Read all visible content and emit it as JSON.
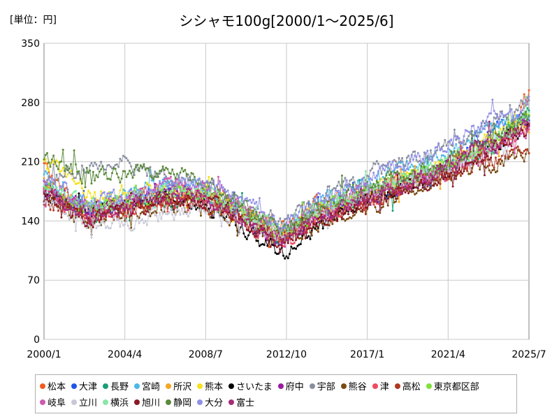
{
  "unit_label": "[単位：円]",
  "chart_data": {
    "type": "line",
    "title": "シシャモ100g[2000/1～2025/6]",
    "xlabel": "",
    "ylabel": "",
    "ylim": [
      0,
      350
    ],
    "yticks": [
      0,
      70,
      140,
      210,
      280,
      350
    ],
    "xticks": [
      "2000/1",
      "2004/4",
      "2008/7",
      "2012/10",
      "2017/1",
      "2021/4",
      "2025/7"
    ],
    "grid": true,
    "legend_position": "bottom",
    "series": [
      {
        "name": "松本",
        "color": "#f05a22",
        "anchors": [
          [
            0,
            205
          ],
          [
            12,
            175
          ],
          [
            30,
            150
          ],
          [
            51,
            160
          ],
          [
            80,
            170
          ],
          [
            102,
            165
          ],
          [
            125,
            155
          ],
          [
            150,
            135
          ],
          [
            170,
            160
          ],
          [
            210,
            175
          ],
          [
            250,
            200
          ],
          [
            270,
            215
          ],
          [
            295,
            245
          ],
          [
            306,
            292
          ]
        ]
      },
      {
        "name": "大津",
        "color": "#1f56e6",
        "anchors": [
          [
            0,
            175
          ],
          [
            12,
            160
          ],
          [
            30,
            150
          ],
          [
            51,
            160
          ],
          [
            80,
            175
          ],
          [
            102,
            175
          ],
          [
            125,
            150
          ],
          [
            150,
            120
          ],
          [
            170,
            150
          ],
          [
            210,
            170
          ],
          [
            250,
            195
          ],
          [
            270,
            230
          ],
          [
            295,
            260
          ],
          [
            306,
            265
          ]
        ]
      },
      {
        "name": "長野",
        "color": "#1a9d78",
        "anchors": [
          [
            0,
            175
          ],
          [
            12,
            160
          ],
          [
            30,
            150
          ],
          [
            51,
            155
          ],
          [
            80,
            165
          ],
          [
            102,
            172
          ],
          [
            125,
            155
          ],
          [
            150,
            115
          ],
          [
            170,
            145
          ],
          [
            210,
            175
          ],
          [
            250,
            200
          ],
          [
            270,
            215
          ],
          [
            295,
            245
          ],
          [
            306,
            270
          ]
        ]
      },
      {
        "name": "宮崎",
        "color": "#4cb8e8",
        "anchors": [
          [
            0,
            190
          ],
          [
            12,
            170
          ],
          [
            30,
            155
          ],
          [
            51,
            170
          ],
          [
            80,
            185
          ],
          [
            102,
            175
          ],
          [
            125,
            150
          ],
          [
            150,
            125
          ],
          [
            170,
            160
          ],
          [
            210,
            190
          ],
          [
            250,
            215
          ],
          [
            270,
            235
          ],
          [
            295,
            260
          ],
          [
            306,
            270
          ]
        ]
      },
      {
        "name": "所沢",
        "color": "#f5a623",
        "anchors": [
          [
            0,
            185
          ],
          [
            12,
            165
          ],
          [
            30,
            150
          ],
          [
            51,
            160
          ],
          [
            80,
            170
          ],
          [
            102,
            170
          ],
          [
            125,
            155
          ],
          [
            150,
            125
          ],
          [
            170,
            145
          ],
          [
            210,
            175
          ],
          [
            250,
            200
          ],
          [
            270,
            220
          ],
          [
            295,
            245
          ],
          [
            306,
            255
          ]
        ]
      },
      {
        "name": "熊本",
        "color": "#f5e11c",
        "anchors": [
          [
            0,
            205
          ],
          [
            12,
            200
          ],
          [
            30,
            170
          ],
          [
            51,
            175
          ],
          [
            80,
            180
          ],
          [
            102,
            175
          ],
          [
            125,
            150
          ],
          [
            150,
            125
          ],
          [
            170,
            150
          ],
          [
            210,
            180
          ],
          [
            250,
            205
          ],
          [
            270,
            225
          ],
          [
            295,
            250
          ],
          [
            306,
            265
          ]
        ]
      },
      {
        "name": "さいたま",
        "color": "#000000",
        "anchors": [
          [
            0,
            170
          ],
          [
            12,
            160
          ],
          [
            30,
            150
          ],
          [
            51,
            160
          ],
          [
            80,
            170
          ],
          [
            102,
            160
          ],
          [
            125,
            130
          ],
          [
            150,
            100
          ],
          [
            170,
            130
          ],
          [
            210,
            170
          ],
          [
            250,
            195
          ],
          [
            270,
            215
          ],
          [
            295,
            240
          ],
          [
            306,
            260
          ]
        ]
      },
      {
        "name": "府中",
        "color": "#9a1aa0",
        "anchors": [
          [
            0,
            180
          ],
          [
            12,
            165
          ],
          [
            30,
            150
          ],
          [
            51,
            160
          ],
          [
            80,
            175
          ],
          [
            102,
            165
          ],
          [
            125,
            145
          ],
          [
            150,
            115
          ],
          [
            170,
            140
          ],
          [
            210,
            175
          ],
          [
            250,
            200
          ],
          [
            270,
            225
          ],
          [
            295,
            245
          ],
          [
            306,
            255
          ]
        ]
      },
      {
        "name": "宇部",
        "color": "#8a8fa0",
        "anchors": [
          [
            0,
            185
          ],
          [
            12,
            195
          ],
          [
            30,
            205
          ],
          [
            51,
            210
          ],
          [
            80,
            190
          ],
          [
            102,
            180
          ],
          [
            125,
            160
          ],
          [
            150,
            140
          ],
          [
            170,
            165
          ],
          [
            210,
            200
          ],
          [
            250,
            225
          ],
          [
            270,
            240
          ],
          [
            295,
            270
          ],
          [
            306,
            280
          ]
        ]
      },
      {
        "name": "熊谷",
        "color": "#7a4a12",
        "anchors": [
          [
            0,
            170
          ],
          [
            12,
            155
          ],
          [
            30,
            140
          ],
          [
            51,
            150
          ],
          [
            80,
            160
          ],
          [
            102,
            155
          ],
          [
            125,
            140
          ],
          [
            150,
            120
          ],
          [
            170,
            135
          ],
          [
            210,
            160
          ],
          [
            250,
            190
          ],
          [
            270,
            200
          ],
          [
            295,
            215
          ],
          [
            306,
            220
          ]
        ]
      },
      {
        "name": "津",
        "color": "#f04a5e",
        "anchors": [
          [
            0,
            185
          ],
          [
            12,
            160
          ],
          [
            30,
            145
          ],
          [
            51,
            155
          ],
          [
            80,
            165
          ],
          [
            102,
            165
          ],
          [
            125,
            140
          ],
          [
            150,
            110
          ],
          [
            170,
            140
          ],
          [
            210,
            170
          ],
          [
            250,
            195
          ],
          [
            270,
            215
          ],
          [
            295,
            240
          ],
          [
            306,
            250
          ]
        ]
      },
      {
        "name": "高松",
        "color": "#b0381e",
        "anchors": [
          [
            0,
            165
          ],
          [
            12,
            155
          ],
          [
            30,
            145
          ],
          [
            51,
            155
          ],
          [
            80,
            165
          ],
          [
            102,
            160
          ],
          [
            125,
            145
          ],
          [
            150,
            125
          ],
          [
            170,
            145
          ],
          [
            210,
            170
          ],
          [
            250,
            195
          ],
          [
            270,
            205
          ],
          [
            295,
            220
          ],
          [
            306,
            230
          ]
        ]
      },
      {
        "name": "東京都区部",
        "color": "#7fe03a",
        "anchors": [
          [
            0,
            180
          ],
          [
            12,
            165
          ],
          [
            30,
            155
          ],
          [
            51,
            165
          ],
          [
            80,
            175
          ],
          [
            102,
            170
          ],
          [
            125,
            150
          ],
          [
            150,
            125
          ],
          [
            170,
            150
          ],
          [
            210,
            180
          ],
          [
            250,
            205
          ],
          [
            270,
            220
          ],
          [
            295,
            245
          ],
          [
            306,
            260
          ]
        ]
      },
      {
        "name": "岐阜",
        "color": "#d05ab0",
        "anchors": [
          [
            0,
            180
          ],
          [
            12,
            165
          ],
          [
            30,
            150
          ],
          [
            51,
            165
          ],
          [
            80,
            180
          ],
          [
            102,
            185
          ],
          [
            125,
            160
          ],
          [
            150,
            125
          ],
          [
            170,
            150
          ],
          [
            210,
            180
          ],
          [
            250,
            200
          ],
          [
            270,
            215
          ],
          [
            295,
            235
          ],
          [
            306,
            245
          ]
        ]
      },
      {
        "name": "立川",
        "color": "#c8c8d8",
        "anchors": [
          [
            0,
            165
          ],
          [
            12,
            150
          ],
          [
            30,
            130
          ],
          [
            51,
            140
          ],
          [
            80,
            150
          ],
          [
            102,
            155
          ],
          [
            125,
            140
          ],
          [
            150,
            120
          ],
          [
            170,
            145
          ],
          [
            210,
            175
          ],
          [
            250,
            200
          ],
          [
            270,
            220
          ],
          [
            295,
            245
          ],
          [
            306,
            255
          ]
        ]
      },
      {
        "name": "横浜",
        "color": "#8ae6a8",
        "anchors": [
          [
            0,
            185
          ],
          [
            12,
            170
          ],
          [
            30,
            155
          ],
          [
            51,
            165
          ],
          [
            80,
            175
          ],
          [
            102,
            175
          ],
          [
            125,
            155
          ],
          [
            150,
            125
          ],
          [
            170,
            150
          ],
          [
            210,
            180
          ],
          [
            250,
            205
          ],
          [
            270,
            220
          ],
          [
            295,
            245
          ],
          [
            306,
            265
          ]
        ]
      },
      {
        "name": "旭川",
        "color": "#8a1a24",
        "anchors": [
          [
            0,
            175
          ],
          [
            12,
            160
          ],
          [
            30,
            140
          ],
          [
            51,
            150
          ],
          [
            80,
            165
          ],
          [
            102,
            165
          ],
          [
            125,
            140
          ],
          [
            150,
            110
          ],
          [
            170,
            135
          ],
          [
            210,
            165
          ],
          [
            250,
            190
          ],
          [
            270,
            210
          ],
          [
            295,
            235
          ],
          [
            306,
            250
          ]
        ]
      },
      {
        "name": "静岡",
        "color": "#5a8a3c",
        "anchors": [
          [
            0,
            215
          ],
          [
            12,
            205
          ],
          [
            30,
            190
          ],
          [
            51,
            195
          ],
          [
            80,
            200
          ],
          [
            102,
            185
          ],
          [
            125,
            160
          ],
          [
            150,
            130
          ],
          [
            170,
            155
          ],
          [
            210,
            185
          ],
          [
            250,
            205
          ],
          [
            270,
            225
          ],
          [
            295,
            250
          ],
          [
            306,
            265
          ]
        ]
      },
      {
        "name": "大分",
        "color": "#9090e8",
        "anchors": [
          [
            0,
            190
          ],
          [
            12,
            175
          ],
          [
            30,
            160
          ],
          [
            51,
            170
          ],
          [
            80,
            185
          ],
          [
            102,
            180
          ],
          [
            125,
            165
          ],
          [
            150,
            135
          ],
          [
            170,
            160
          ],
          [
            210,
            195
          ],
          [
            250,
            225
          ],
          [
            270,
            245
          ],
          [
            295,
            265
          ],
          [
            306,
            280
          ]
        ]
      },
      {
        "name": "富士",
        "color": "#a82a7a",
        "anchors": [
          [
            0,
            175
          ],
          [
            12,
            160
          ],
          [
            30,
            145
          ],
          [
            51,
            155
          ],
          [
            80,
            170
          ],
          [
            102,
            165
          ],
          [
            125,
            145
          ],
          [
            150,
            115
          ],
          [
            170,
            140
          ],
          [
            210,
            170
          ],
          [
            250,
            200
          ],
          [
            270,
            220
          ],
          [
            295,
            240
          ],
          [
            306,
            250
          ]
        ]
      }
    ]
  }
}
